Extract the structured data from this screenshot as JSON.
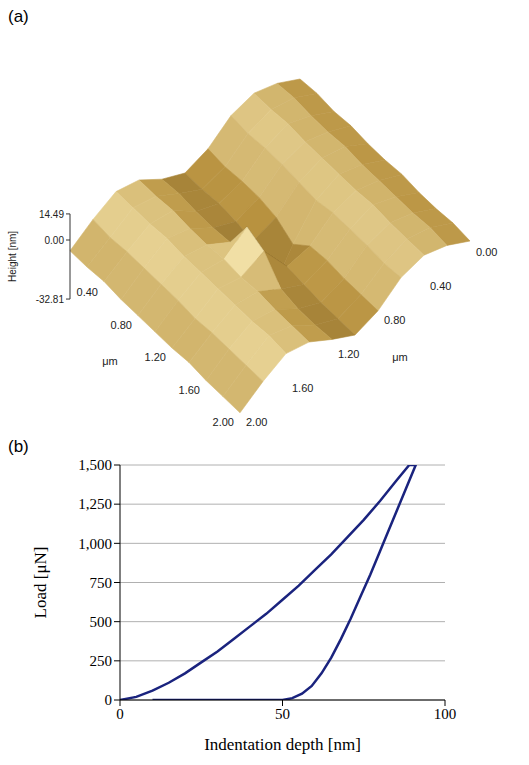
{
  "chart_data": [
    {
      "type": "surface",
      "title": "(a)",
      "x_label": "μm",
      "y_label": "μm",
      "z_label": "Height [nm]",
      "x": [
        0,
        0.2,
        0.4,
        0.6,
        0.8,
        1.0,
        1.2,
        1.4,
        1.6,
        1.8,
        2.0
      ],
      "y": [
        0,
        0.2,
        0.4,
        0.6,
        0.8,
        1.0,
        1.2,
        1.4,
        1.6,
        1.8,
        2.0
      ],
      "z": [
        [
          -5,
          2,
          6,
          3,
          -6,
          -10,
          -4,
          5,
          8,
          2,
          -6
        ],
        [
          -4,
          3,
          6,
          2,
          -7,
          -10,
          -3,
          5,
          8,
          1,
          -6
        ],
        [
          -5,
          2,
          7,
          3,
          -6,
          -9,
          -4,
          6,
          8,
          2,
          -5
        ],
        [
          -4,
          2,
          6,
          3,
          -6,
          -10,
          -4,
          5,
          9,
          2,
          -6
        ],
        [
          -5,
          3,
          6,
          2,
          -8,
          -12,
          -3,
          5,
          8,
          2,
          -6
        ],
        [
          -5,
          2,
          6,
          1,
          -14,
          -32.81,
          14.49,
          6,
          8,
          2,
          -6
        ],
        [
          -4,
          2,
          6,
          3,
          -6,
          -8,
          10,
          5,
          8,
          1,
          -6
        ],
        [
          -5,
          2,
          7,
          3,
          -5,
          -9,
          -2,
          6,
          8,
          2,
          -5
        ],
        [
          -5,
          2,
          6,
          3,
          -6,
          -10,
          -4,
          5,
          8,
          2,
          -6
        ],
        [
          -4,
          3,
          6,
          2,
          -6,
          -10,
          -4,
          5,
          9,
          2,
          -6
        ],
        [
          -5,
          2,
          6,
          3,
          -6,
          -10,
          -3,
          5,
          8,
          2,
          -6
        ]
      ],
      "xlim": [
        0,
        2
      ],
      "ylim": [
        0,
        2
      ],
      "zlim": [
        -32.81,
        14.49
      ],
      "xticks": [
        {
          "value": 0.4,
          "label": "0.40"
        },
        {
          "value": 0.8,
          "label": "0.80"
        },
        {
          "value": 1.2,
          "label": "1.20"
        },
        {
          "value": 1.6,
          "label": "1.60"
        },
        {
          "value": 2,
          "label": "2.00"
        }
      ],
      "yticks": [
        {
          "value": 0,
          "label": "0.00"
        },
        {
          "value": 0.4,
          "label": "0.40"
        },
        {
          "value": 0.8,
          "label": "0.80"
        },
        {
          "value": 1.2,
          "label": "1.20"
        },
        {
          "value": 1.6,
          "label": "1.60"
        },
        {
          "value": 2,
          "label": "2.00"
        }
      ],
      "zticks": [
        14.49,
        {
          "value": 0,
          "label": "0.00"
        },
        -32.81
      ]
    },
    {
      "type": "line",
      "title": "(b)",
      "x_label": "Indentation depth [nm]",
      "y_label": "Load [μN]",
      "color": "#1a237e",
      "marker": "none",
      "line_style": "solid",
      "grid": true,
      "x": [
        0,
        5,
        10,
        15,
        20,
        25,
        30,
        35,
        40,
        45,
        50,
        55,
        60,
        65,
        70,
        75,
        80,
        85,
        89,
        91,
        88,
        85,
        82,
        80,
        77,
        74,
        71,
        68,
        65,
        62,
        59,
        56,
        53,
        50,
        45,
        40,
        30,
        20,
        10
      ],
      "values": [
        0,
        20,
        60,
        110,
        170,
        240,
        310,
        390,
        470,
        550,
        640,
        730,
        830,
        930,
        1040,
        1150,
        1270,
        1400,
        1500,
        1500,
        1350,
        1200,
        1050,
        950,
        800,
        660,
        520,
        390,
        270,
        170,
        90,
        40,
        12,
        0,
        0,
        0,
        0,
        0,
        0
      ],
      "xlim": [
        0,
        100
      ],
      "xticks": [
        0,
        50,
        100
      ],
      "ylim": [
        0,
        1500
      ],
      "yticks": [
        0,
        250,
        500,
        750,
        {
          "value": 1000,
          "label": "1,000"
        },
        {
          "value": 1250,
          "label": "1,250"
        },
        {
          "value": 1500,
          "label": "1,500"
        }
      ]
    }
  ]
}
